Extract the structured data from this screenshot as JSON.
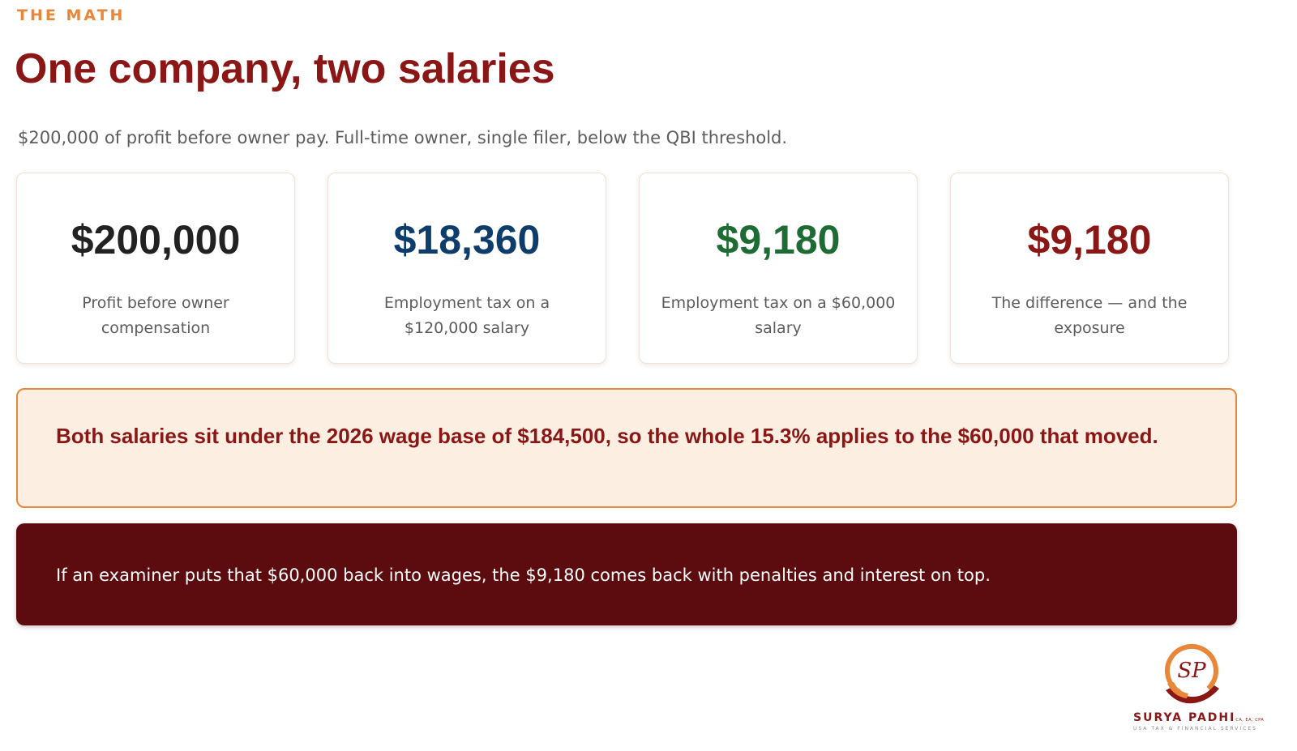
{
  "header": {
    "eyebrow": "THE MATH",
    "title": "One company, two salaries",
    "subtitle": "$200,000 of profit before owner pay. Full-time owner, single filer, below the QBI threshold."
  },
  "stats": [
    {
      "value": "$200,000",
      "label": "Profit before owner compensation",
      "color": "#222222"
    },
    {
      "value": "$18,360",
      "label": "Employment tax on a $120,000 salary",
      "color": "#0f3d6b"
    },
    {
      "value": "$9,180",
      "label": "Employment tax on a $60,000 salary",
      "color": "#1e6b34"
    },
    {
      "value": "$9,180",
      "label": "The difference — and the exposure",
      "color": "#8b1616"
    }
  ],
  "callout": {
    "text": "Both salaries sit under the 2026 wage base of $184,500, so the whole 15.3% applies to the $60,000 that moved."
  },
  "banner": {
    "text": "If an examiner puts that $60,000 back into wages, the $9,180 comes back with penalties and interest on top."
  },
  "logo": {
    "monogram": "SP",
    "name": "SURYA PADHI",
    "credentials": "CA, EA, CPA",
    "tagline": "USA TAX & FINANCIAL SERVICES"
  },
  "colors": {
    "accent": "#e8873a",
    "brand": "#8b1616",
    "banner_bg": "#5c0c0f",
    "callout_bg": "#fcefe2"
  }
}
